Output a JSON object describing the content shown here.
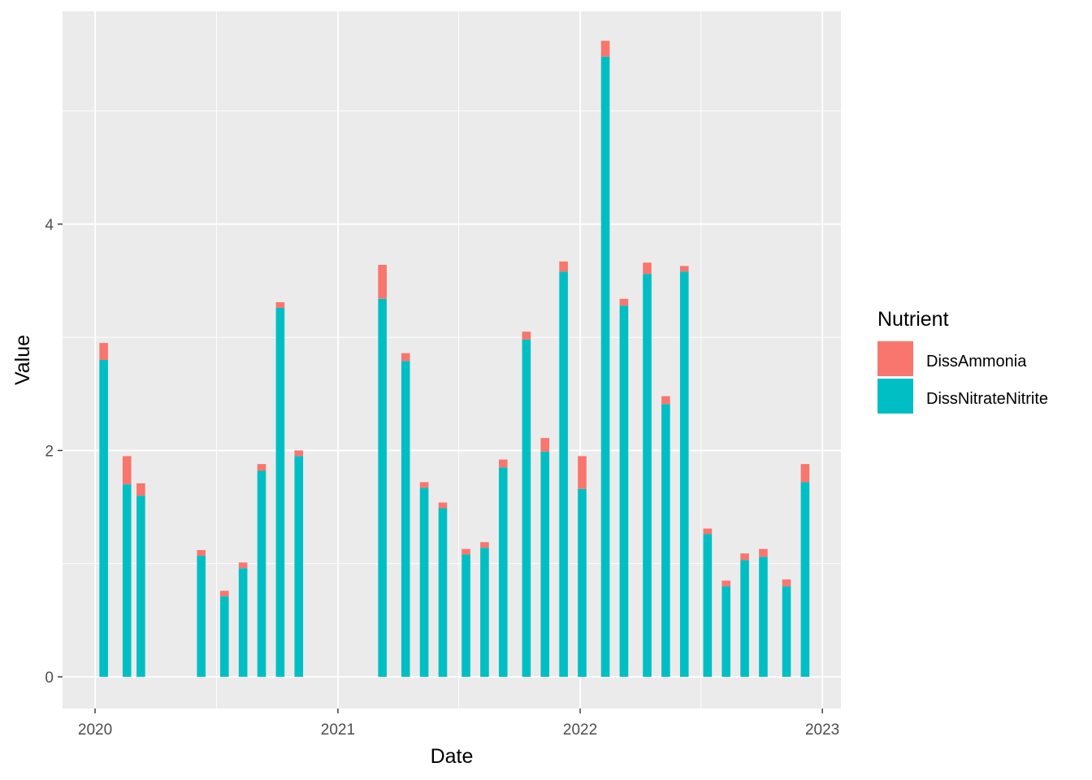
{
  "chart_data": {
    "type": "bar",
    "stacked": true,
    "xlabel": "Date",
    "ylabel": "Value",
    "x_ticks": [
      "2020",
      "2021",
      "2022",
      "2023"
    ],
    "y_ticks": [
      0,
      2,
      4
    ],
    "ylim": [
      -0.28,
      5.88
    ],
    "xlim": [
      "2019-11-13",
      "2023-01-29"
    ],
    "grid": true,
    "legend": {
      "title": "Nutrient",
      "position": "right"
    },
    "series": [
      {
        "name": "DissNitrateNitrite",
        "color": "#00BFC4"
      },
      {
        "name": "DissAmmonia",
        "color": "#F8766D"
      }
    ],
    "bars": [
      {
        "date": "2020-01-14",
        "DissNitrateNitrite": 2.8,
        "DissAmmonia": 0.15
      },
      {
        "date": "2020-02-18",
        "DissNitrateNitrite": 1.7,
        "DissAmmonia": 0.25
      },
      {
        "date": "2020-03-10",
        "DissNitrateNitrite": 1.6,
        "DissAmmonia": 0.11
      },
      {
        "date": "2020-06-09",
        "DissNitrateNitrite": 1.07,
        "DissAmmonia": 0.05
      },
      {
        "date": "2020-07-14",
        "DissNitrateNitrite": 0.71,
        "DissAmmonia": 0.05
      },
      {
        "date": "2020-08-11",
        "DissNitrateNitrite": 0.96,
        "DissAmmonia": 0.05
      },
      {
        "date": "2020-09-08",
        "DissNitrateNitrite": 1.82,
        "DissAmmonia": 0.06
      },
      {
        "date": "2020-10-06",
        "DissNitrateNitrite": 3.26,
        "DissAmmonia": 0.05
      },
      {
        "date": "2020-11-03",
        "DissNitrateNitrite": 1.95,
        "DissAmmonia": 0.05
      },
      {
        "date": "2021-03-09",
        "DissNitrateNitrite": 3.34,
        "DissAmmonia": 0.3
      },
      {
        "date": "2021-04-13",
        "DissNitrateNitrite": 2.79,
        "DissAmmonia": 0.07
      },
      {
        "date": "2021-05-11",
        "DissNitrateNitrite": 1.67,
        "DissAmmonia": 0.05
      },
      {
        "date": "2021-06-08",
        "DissNitrateNitrite": 1.49,
        "DissAmmonia": 0.05
      },
      {
        "date": "2021-07-13",
        "DissNitrateNitrite": 1.08,
        "DissAmmonia": 0.05
      },
      {
        "date": "2021-08-10",
        "DissNitrateNitrite": 1.14,
        "DissAmmonia": 0.05
      },
      {
        "date": "2021-09-07",
        "DissNitrateNitrite": 1.85,
        "DissAmmonia": 0.07
      },
      {
        "date": "2021-10-12",
        "DissNitrateNitrite": 2.98,
        "DissAmmonia": 0.07
      },
      {
        "date": "2021-11-09",
        "DissNitrateNitrite": 1.99,
        "DissAmmonia": 0.12
      },
      {
        "date": "2021-12-07",
        "DissNitrateNitrite": 3.58,
        "DissAmmonia": 0.09
      },
      {
        "date": "2022-01-04",
        "DissNitrateNitrite": 1.66,
        "DissAmmonia": 0.29
      },
      {
        "date": "2022-02-08",
        "DissNitrateNitrite": 5.48,
        "DissAmmonia": 0.14
      },
      {
        "date": "2022-03-08",
        "DissNitrateNitrite": 3.28,
        "DissAmmonia": 0.06
      },
      {
        "date": "2022-04-12",
        "DissNitrateNitrite": 3.56,
        "DissAmmonia": 0.1
      },
      {
        "date": "2022-05-10",
        "DissNitrateNitrite": 2.41,
        "DissAmmonia": 0.07
      },
      {
        "date": "2022-06-07",
        "DissNitrateNitrite": 3.58,
        "DissAmmonia": 0.05
      },
      {
        "date": "2022-07-12",
        "DissNitrateNitrite": 1.26,
        "DissAmmonia": 0.05
      },
      {
        "date": "2022-08-09",
        "DissNitrateNitrite": 0.8,
        "DissAmmonia": 0.05
      },
      {
        "date": "2022-09-06",
        "DissNitrateNitrite": 1.03,
        "DissAmmonia": 0.06
      },
      {
        "date": "2022-10-04",
        "DissNitrateNitrite": 1.06,
        "DissAmmonia": 0.07
      },
      {
        "date": "2022-11-08",
        "DissNitrateNitrite": 0.8,
        "DissAmmonia": 0.06
      },
      {
        "date": "2022-12-06",
        "DissNitrateNitrite": 1.72,
        "DissAmmonia": 0.16
      }
    ]
  }
}
